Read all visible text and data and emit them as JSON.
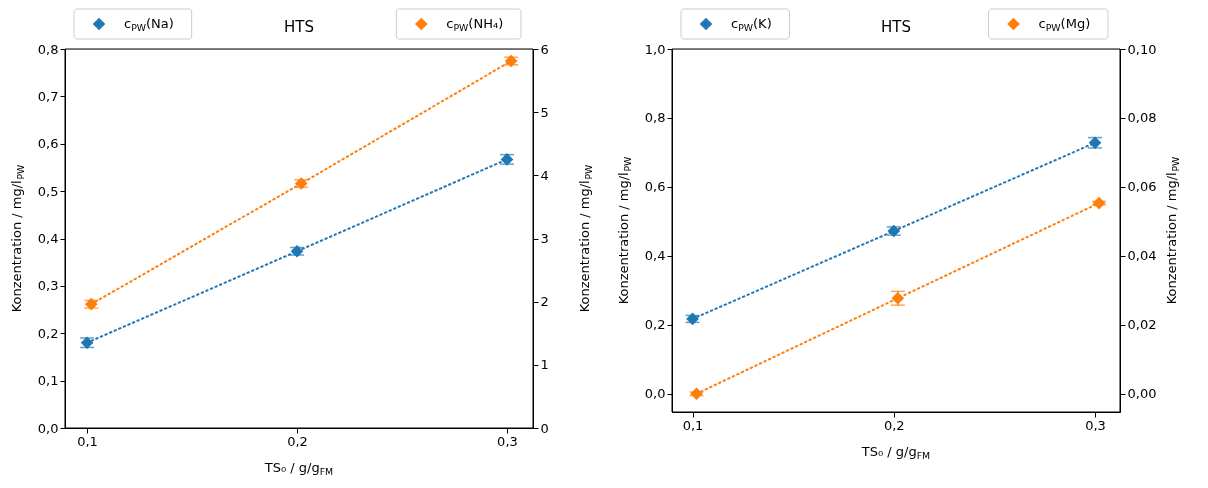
{
  "chart_data": [
    {
      "type": "line",
      "title": "HTS",
      "xlabel": "TS₀ / g/g$_{FM}$",
      "ylabel": "Konzentration / mg/l$_{PW}$",
      "y2label": "Konzentration / mg/l$_{PW}$",
      "xlim": [
        0.0895,
        0.3124
      ],
      "xticks": [
        {
          "value": 0.1,
          "label": "0,1"
        },
        {
          "value": 0.2,
          "label": "0,2"
        },
        {
          "value": 0.3,
          "label": "0,3"
        }
      ],
      "ylim": [
        0,
        0.8
      ],
      "yticks": [
        {
          "value": 0,
          "label": "0,0"
        },
        {
          "value": 0.1,
          "label": "0,1"
        },
        {
          "value": 0.2,
          "label": "0,2"
        },
        {
          "value": 0.3,
          "label": "0,3"
        },
        {
          "value": 0.4,
          "label": "0,4"
        },
        {
          "value": 0.5,
          "label": "0,5"
        },
        {
          "value": 0.6,
          "label": "0,6"
        },
        {
          "value": 0.7,
          "label": "0,7"
        },
        {
          "value": 0.8,
          "label": "0,8"
        }
      ],
      "y2lim": [
        0,
        6
      ],
      "y2ticks": [
        0,
        1,
        2,
        3,
        4,
        5,
        6
      ],
      "marker": "diamond",
      "line_style": "dotted",
      "legend": "top",
      "grid": false,
      "series": [
        {
          "name": "c$_{PW}$(Na)",
          "color": "#1f77b4",
          "x": [
            0.1,
            0.2,
            0.3
          ],
          "values": [
            0.18,
            0.373,
            0.567
          ],
          "errors": [
            0.01,
            0.008,
            0.01
          ]
        },
        {
          "name": "c$_{PW}$(NH₄)",
          "color": "#ff7f0e",
          "axis": "y2",
          "x": [
            0.102,
            0.202,
            0.302
          ],
          "values": [
            1.96,
            3.87,
            5.81
          ],
          "errors": [
            0.06,
            0.06,
            0.06
          ]
        }
      ]
    },
    {
      "type": "line",
      "title": "HTS",
      "xlabel": "TS₀ / g/g$_{FM}$",
      "ylabel": "Konzentration / mg/l$_{PW}$",
      "y2label": "Konzentration / mg/l$_{PW}$",
      "xlim": [
        0.0898,
        0.3124
      ],
      "xticks": [
        {
          "value": 0.1,
          "label": "0,1"
        },
        {
          "value": 0.2,
          "label": "0,2"
        },
        {
          "value": 0.3,
          "label": "0,3"
        }
      ],
      "ylim": [
        -0.053,
        1.0
      ],
      "yticks": [
        {
          "value": 0,
          "label": "0,0"
        },
        {
          "value": 0.2,
          "label": "0,2"
        },
        {
          "value": 0.4,
          "label": "0,4"
        },
        {
          "value": 0.6,
          "label": "0,6"
        },
        {
          "value": 0.8,
          "label": "0,8"
        },
        {
          "value": 1.0,
          "label": "1,0"
        }
      ],
      "y2lim": [
        -0.0053,
        0.1
      ],
      "y2ticks": [
        {
          "value": 0,
          "label": "0,00"
        },
        {
          "value": 0.02,
          "label": "0,02"
        },
        {
          "value": 0.04,
          "label": "0,04"
        },
        {
          "value": 0.06,
          "label": "0,06"
        },
        {
          "value": 0.08,
          "label": "0,08"
        },
        {
          "value": 0.1,
          "label": "0,10"
        }
      ],
      "marker": "diamond",
      "line_style": "dotted",
      "legend": "top",
      "grid": false,
      "series": [
        {
          "name": "c$_{PW}$(K)",
          "color": "#1f77b4",
          "x": [
            0.1,
            0.2,
            0.3
          ],
          "values": [
            0.217,
            0.472,
            0.728
          ],
          "errors": [
            0.01,
            0.012,
            0.015
          ]
        },
        {
          "name": "c$_{PW}$(Mg)",
          "color": "#ff7f0e",
          "axis": "y2",
          "x": [
            0.102,
            0.202,
            0.302
          ],
          "values": [
            0.0,
            0.0277,
            0.0553
          ],
          "errors": [
            0.0005,
            0.002,
            0.0005
          ]
        }
      ]
    }
  ]
}
